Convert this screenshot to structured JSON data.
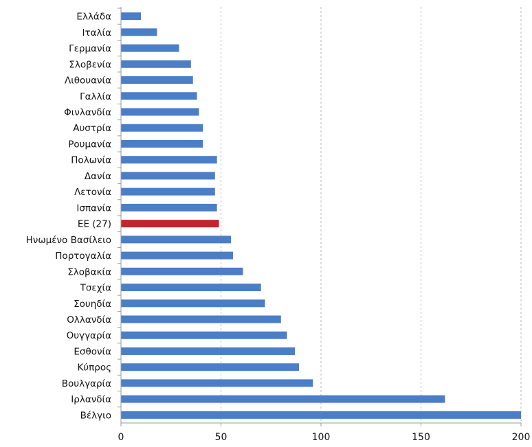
{
  "chart_data": {
    "type": "bar",
    "orientation": "horizontal",
    "categories": [
      "Ελλάδα",
      "Ιταλία",
      "Γερμανία",
      "Σλοβενία",
      "Λιθουανία",
      "Γαλλία",
      "Φινλανδία",
      "Αυστρία",
      "Ρουμανία",
      "Πολωνία",
      "Δανία",
      "Λετονία",
      "Ισπανία",
      "ΕΕ (27)",
      "Ηνωμένο Βασίλειο",
      "Πορτογαλία",
      "Σλοβακία",
      "Τσεχία",
      "Σουηδία",
      "Ολλανδία",
      "Ουγγαρία",
      "Εσθονία",
      "Κύπρος",
      "Βουλγαρία",
      "Ιρλανδία",
      "Βέλγιο"
    ],
    "values": [
      10,
      18,
      29,
      35,
      36,
      38,
      39,
      41,
      41,
      48,
      47,
      47,
      48,
      49,
      55,
      56,
      61,
      70,
      72,
      80,
      83,
      87,
      89,
      96,
      162,
      201
    ],
    "highlight_category": "ΕΕ (27)",
    "colors": {
      "bar": "#4a7ec7",
      "highlight": "#c0272d",
      "grid": "#b8b8b8",
      "axis": "#9a9a9a"
    },
    "xlim": [
      0,
      200
    ],
    "x_ticks": [
      0,
      50,
      100,
      150,
      200
    ],
    "grid": "vertical-dashed",
    "title": "",
    "xlabel": "",
    "ylabel": ""
  }
}
